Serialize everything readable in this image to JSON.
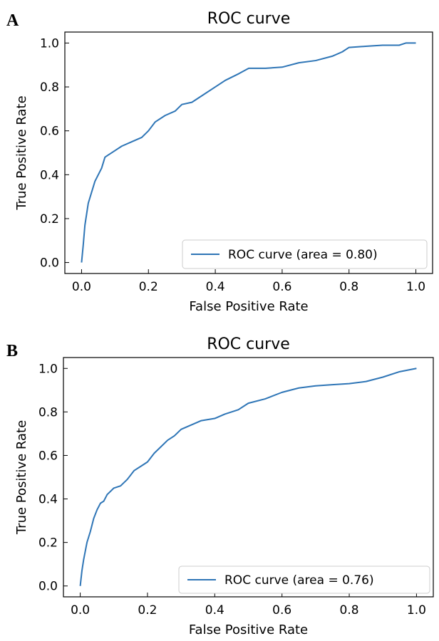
{
  "chart_data": [
    {
      "panel_label": "A",
      "type": "line",
      "title": "ROC curve",
      "xlabel": "False Positive Rate",
      "ylabel": "True Positive Rate",
      "xlim": [
        0.0,
        1.0
      ],
      "ylim": [
        0.0,
        1.0
      ],
      "x_ticks": [
        "0.0",
        "0.2",
        "0.4",
        "0.6",
        "0.8",
        "1.0"
      ],
      "y_ticks": [
        "0.0",
        "0.2",
        "0.4",
        "0.6",
        "0.8",
        "1.0"
      ],
      "grid": false,
      "legend_position": "lower-right",
      "color": "#2e75b6",
      "series": [
        {
          "name": "ROC curve (area = 0.80)",
          "x": [
            0.0,
            0.005,
            0.01,
            0.015,
            0.02,
            0.03,
            0.04,
            0.05,
            0.06,
            0.07,
            0.08,
            0.1,
            0.12,
            0.15,
            0.18,
            0.2,
            0.22,
            0.25,
            0.28,
            0.3,
            0.33,
            0.36,
            0.4,
            0.43,
            0.47,
            0.5,
            0.55,
            0.6,
            0.65,
            0.7,
            0.75,
            0.78,
            0.8,
            0.85,
            0.9,
            0.95,
            0.97,
            1.0
          ],
          "y": [
            0.0,
            0.08,
            0.17,
            0.22,
            0.27,
            0.32,
            0.37,
            0.4,
            0.43,
            0.48,
            0.49,
            0.51,
            0.53,
            0.55,
            0.57,
            0.6,
            0.64,
            0.67,
            0.69,
            0.72,
            0.73,
            0.76,
            0.8,
            0.83,
            0.86,
            0.885,
            0.885,
            0.89,
            0.91,
            0.92,
            0.94,
            0.96,
            0.98,
            0.985,
            0.99,
            0.99,
            1.0,
            1.0
          ]
        }
      ]
    },
    {
      "panel_label": "B",
      "type": "line",
      "title": "ROC curve",
      "xlabel": "False Positive Rate",
      "ylabel": "True Positive Rate",
      "xlim": [
        0.0,
        1.0
      ],
      "ylim": [
        0.0,
        1.0
      ],
      "x_ticks": [
        "0.0",
        "0.2",
        "0.4",
        "0.6",
        "0.8",
        "1.0"
      ],
      "y_ticks": [
        "0.0",
        "0.2",
        "0.4",
        "0.6",
        "0.8",
        "1.0"
      ],
      "grid": false,
      "legend_position": "lower-right",
      "color": "#2e75b6",
      "series": [
        {
          "name": "ROC curve (area = 0.76)",
          "x": [
            0.0,
            0.005,
            0.01,
            0.02,
            0.03,
            0.04,
            0.05,
            0.06,
            0.07,
            0.08,
            0.1,
            0.12,
            0.14,
            0.16,
            0.18,
            0.2,
            0.22,
            0.24,
            0.26,
            0.28,
            0.3,
            0.33,
            0.36,
            0.4,
            0.43,
            0.47,
            0.5,
            0.55,
            0.6,
            0.65,
            0.7,
            0.75,
            0.8,
            0.85,
            0.9,
            0.95,
            1.0
          ],
          "y": [
            0.0,
            0.07,
            0.12,
            0.2,
            0.25,
            0.31,
            0.35,
            0.38,
            0.39,
            0.42,
            0.45,
            0.46,
            0.49,
            0.53,
            0.55,
            0.57,
            0.61,
            0.64,
            0.67,
            0.69,
            0.72,
            0.74,
            0.76,
            0.77,
            0.79,
            0.81,
            0.84,
            0.86,
            0.89,
            0.91,
            0.92,
            0.925,
            0.93,
            0.94,
            0.96,
            0.985,
            1.0
          ]
        }
      ]
    }
  ]
}
